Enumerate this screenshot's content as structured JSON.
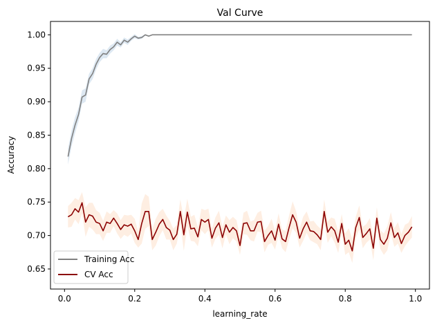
{
  "chart_data": {
    "type": "line",
    "title": "Val Curve",
    "xlabel": "learning_rate",
    "ylabel": "Accuracy",
    "xlim": [
      -0.04,
      1.04
    ],
    "ylim": [
      0.62,
      1.02
    ],
    "xticks": [
      "0.0",
      "0.2",
      "0.4",
      "0.6",
      "0.8",
      "1.0"
    ],
    "xtick_values": [
      0.0,
      0.2,
      0.4,
      0.6,
      0.8,
      1.0
    ],
    "yticks": [
      "0.65",
      "0.70",
      "0.75",
      "0.80",
      "0.85",
      "0.90",
      "0.95",
      "1.00"
    ],
    "ytick_values": [
      0.65,
      0.7,
      0.75,
      0.8,
      0.85,
      0.9,
      0.95,
      1.0
    ],
    "legend_position": "lower-left",
    "grid": false,
    "x": [
      0.01,
      0.02,
      0.03,
      0.04,
      0.05,
      0.06,
      0.07,
      0.08,
      0.09,
      0.1,
      0.11,
      0.12,
      0.13,
      0.14,
      0.15,
      0.16,
      0.17,
      0.18,
      0.19,
      0.2,
      0.21,
      0.22,
      0.23,
      0.24,
      0.25,
      0.26,
      0.27,
      0.28,
      0.29,
      0.3,
      0.31,
      0.32,
      0.33,
      0.34,
      0.35,
      0.36,
      0.37,
      0.38,
      0.39,
      0.4,
      0.41,
      0.42,
      0.43,
      0.44,
      0.45,
      0.46,
      0.47,
      0.48,
      0.49,
      0.5,
      0.51,
      0.52,
      0.53,
      0.54,
      0.55,
      0.56,
      0.57,
      0.58,
      0.59,
      0.6,
      0.61,
      0.62,
      0.63,
      0.64,
      0.65,
      0.66,
      0.67,
      0.68,
      0.69,
      0.7,
      0.71,
      0.72,
      0.73,
      0.74,
      0.75,
      0.76,
      0.77,
      0.78,
      0.79,
      0.8,
      0.81,
      0.82,
      0.83,
      0.84,
      0.85,
      0.86,
      0.87,
      0.88,
      0.89,
      0.9,
      0.91,
      0.92,
      0.93,
      0.94,
      0.95,
      0.96,
      0.97,
      0.98,
      0.99
    ],
    "series": [
      {
        "name": "Training Acc",
        "color": "#808080",
        "band_color": "#c6d9ea",
        "values": [
          0.818,
          0.845,
          0.865,
          0.881,
          0.907,
          0.91,
          0.934,
          0.942,
          0.956,
          0.966,
          0.972,
          0.971,
          0.978,
          0.982,
          0.989,
          0.985,
          0.992,
          0.989,
          0.994,
          0.998,
          0.995,
          0.996,
          1.0,
          0.998,
          1.0,
          1.0,
          1.0,
          1.0,
          1.0,
          1.0,
          1.0,
          1.0,
          1.0,
          1.0,
          1.0,
          1.0,
          1.0,
          1.0,
          1.0,
          1.0,
          1.0,
          1.0,
          1.0,
          1.0,
          1.0,
          1.0,
          1.0,
          1.0,
          1.0,
          1.0,
          1.0,
          1.0,
          1.0,
          1.0,
          1.0,
          1.0,
          1.0,
          1.0,
          1.0,
          1.0,
          1.0,
          1.0,
          1.0,
          1.0,
          1.0,
          1.0,
          1.0,
          1.0,
          1.0,
          1.0,
          1.0,
          1.0,
          1.0,
          1.0,
          1.0,
          1.0,
          1.0,
          1.0,
          1.0,
          1.0,
          1.0,
          1.0,
          1.0,
          1.0,
          1.0,
          1.0,
          1.0,
          1.0,
          1.0,
          1.0,
          1.0,
          1.0,
          1.0,
          1.0,
          1.0,
          1.0,
          1.0,
          1.0,
          1.0
        ],
        "band": [
          0.012,
          0.012,
          0.012,
          0.01,
          0.01,
          0.01,
          0.008,
          0.008,
          0.008,
          0.007,
          0.007,
          0.006,
          0.006,
          0.005,
          0.005,
          0.004,
          0.004,
          0.004,
          0.003,
          0.003,
          0.002,
          0.002,
          0.001,
          0.001,
          0,
          0,
          0,
          0,
          0,
          0,
          0,
          0,
          0,
          0,
          0,
          0,
          0,
          0,
          0,
          0,
          0,
          0,
          0,
          0,
          0,
          0,
          0,
          0,
          0,
          0,
          0,
          0,
          0,
          0,
          0,
          0,
          0,
          0,
          0,
          0,
          0,
          0,
          0,
          0,
          0,
          0,
          0,
          0,
          0,
          0,
          0,
          0,
          0,
          0,
          0,
          0,
          0,
          0,
          0,
          0,
          0,
          0,
          0,
          0,
          0,
          0,
          0,
          0,
          0,
          0,
          0,
          0,
          0,
          0,
          0,
          0,
          0,
          0,
          0
        ]
      },
      {
        "name": "CV Acc",
        "color": "#8b0000",
        "band_color": "#fde3cf",
        "values": [
          0.728,
          0.731,
          0.74,
          0.735,
          0.749,
          0.72,
          0.731,
          0.729,
          0.72,
          0.718,
          0.707,
          0.72,
          0.718,
          0.726,
          0.718,
          0.709,
          0.716,
          0.714,
          0.717,
          0.707,
          0.694,
          0.718,
          0.736,
          0.736,
          0.694,
          0.705,
          0.717,
          0.724,
          0.712,
          0.708,
          0.694,
          0.702,
          0.736,
          0.701,
          0.735,
          0.71,
          0.711,
          0.698,
          0.724,
          0.72,
          0.724,
          0.696,
          0.711,
          0.719,
          0.697,
          0.716,
          0.705,
          0.712,
          0.707,
          0.685,
          0.718,
          0.719,
          0.707,
          0.707,
          0.72,
          0.721,
          0.691,
          0.7,
          0.707,
          0.693,
          0.717,
          0.695,
          0.691,
          0.712,
          0.731,
          0.72,
          0.696,
          0.71,
          0.72,
          0.707,
          0.706,
          0.701,
          0.694,
          0.736,
          0.705,
          0.713,
          0.707,
          0.69,
          0.718,
          0.687,
          0.693,
          0.677,
          0.712,
          0.727,
          0.697,
          0.703,
          0.71,
          0.681,
          0.726,
          0.694,
          0.687,
          0.696,
          0.719,
          0.697,
          0.704,
          0.688,
          0.7,
          0.705,
          0.713
        ],
        "band": [
          0.016,
          0.018,
          0.016,
          0.018,
          0.016,
          0.022,
          0.018,
          0.02,
          0.018,
          0.016,
          0.015,
          0.016,
          0.014,
          0.012,
          0.015,
          0.014,
          0.015,
          0.016,
          0.014,
          0.018,
          0.012,
          0.03,
          0.026,
          0.022,
          0.016,
          0.02,
          0.018,
          0.016,
          0.018,
          0.014,
          0.016,
          0.014,
          0.018,
          0.024,
          0.02,
          0.018,
          0.02,
          0.014,
          0.016,
          0.018,
          0.016,
          0.014,
          0.016,
          0.018,
          0.016,
          0.014,
          0.018,
          0.016,
          0.016,
          0.014,
          0.016,
          0.018,
          0.014,
          0.016,
          0.014,
          0.016,
          0.016,
          0.014,
          0.018,
          0.014,
          0.016,
          0.014,
          0.016,
          0.018,
          0.02,
          0.016,
          0.014,
          0.018,
          0.016,
          0.014,
          0.016,
          0.014,
          0.016,
          0.018,
          0.016,
          0.014,
          0.018,
          0.016,
          0.014,
          0.016,
          0.018,
          0.018,
          0.016,
          0.018,
          0.016,
          0.014,
          0.016,
          0.018,
          0.016,
          0.014,
          0.016,
          0.018,
          0.016,
          0.014,
          0.016,
          0.014,
          0.016,
          0.014,
          0.016
        ]
      }
    ]
  }
}
